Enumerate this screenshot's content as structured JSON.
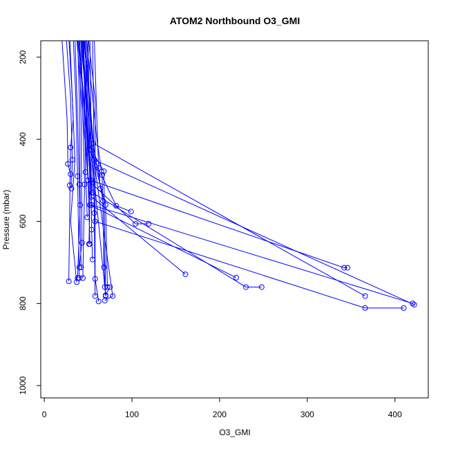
{
  "chart_data": {
    "type": "line",
    "title": "ATOM2 Northbound O3_GMI",
    "xlabel": "O3_GMI",
    "ylabel": "Pressure (mbar)",
    "xlim": [
      -4,
      438
    ],
    "ylim": [
      1030,
      160
    ],
    "y_reversed": true,
    "x_ticks": [
      0,
      100,
      200,
      300,
      400
    ],
    "y_ticks": [
      200,
      400,
      600,
      800,
      1000
    ],
    "grid": false,
    "legend": "none",
    "color": "#0000ff",
    "series": [
      {
        "x": [
          28,
          32,
          35,
          30,
          37
        ],
        "y": [
          150,
          300,
          450,
          600,
          748
        ],
        "markers": [
          0,
          0,
          0,
          0,
          1
        ]
      },
      {
        "x": [
          29,
          33,
          30,
          28
        ],
        "y": [
          150,
          350,
          420,
          746
        ],
        "markers": [
          0,
          0,
          1,
          1
        ]
      },
      {
        "x": [
          20,
          26,
          27,
          30,
          29
        ],
        "y": [
          150,
          350,
          460,
          485,
          512
        ],
        "markers": [
          0,
          0,
          1,
          1,
          1
        ]
      },
      {
        "x": [
          25,
          30,
          32,
          31
        ],
        "y": [
          150,
          300,
          450,
          520
        ],
        "markers": [
          0,
          0,
          1,
          1
        ]
      },
      {
        "x": [
          33,
          36,
          38,
          40
        ],
        "y": [
          150,
          300,
          490,
          738
        ],
        "markers": [
          0,
          0,
          1,
          1
        ]
      },
      {
        "x": [
          35,
          38,
          40,
          42
        ],
        "y": [
          150,
          350,
          510,
          712
        ],
        "markers": [
          0,
          0,
          1,
          1
        ]
      },
      {
        "x": [
          38,
          40,
          41,
          38
        ],
        "y": [
          150,
          300,
          560,
          738
        ],
        "markers": [
          0,
          0,
          1,
          1
        ]
      },
      {
        "x": [
          40,
          42,
          43,
          40
        ],
        "y": [
          150,
          350,
          652,
          712
        ],
        "markers": [
          0,
          0,
          1,
          1
        ]
      },
      {
        "x": [
          42,
          44,
          46,
          44
        ],
        "y": [
          150,
          350,
          510,
          738
        ],
        "markers": [
          0,
          0,
          1,
          1
        ]
      },
      {
        "x": [
          45,
          46,
          47,
          49
        ],
        "y": [
          150,
          300,
          480,
          590
        ],
        "markers": [
          0,
          0,
          1,
          1
        ]
      },
      {
        "x": [
          47,
          48,
          50,
          52
        ],
        "y": [
          150,
          350,
          500,
          655
        ],
        "markers": [
          0,
          0,
          1,
          1
        ]
      },
      {
        "x": [
          50,
          51,
          52,
          51
        ],
        "y": [
          150,
          300,
          560,
          655
        ],
        "markers": [
          0,
          0,
          1,
          1
        ]
      },
      {
        "x": [
          52,
          53,
          54,
          55
        ],
        "y": [
          150,
          300,
          620,
          693
        ],
        "markers": [
          0,
          0,
          1,
          1
        ]
      },
      {
        "x": [
          55,
          56,
          57,
          58
        ],
        "y": [
          150,
          300,
          580,
          782
        ],
        "markers": [
          0,
          0,
          1,
          1
        ]
      },
      {
        "x": [
          57,
          60,
          62,
          64
        ],
        "y": [
          150,
          350,
          470,
          520
        ],
        "markers": [
          0,
          0,
          1,
          1
        ]
      },
      {
        "x": [
          50,
          58,
          58,
          62
        ],
        "y": [
          150,
          300,
          740,
          795
        ],
        "markers": [
          0,
          0,
          1,
          1
        ]
      },
      {
        "x": [
          48,
          60,
          66,
          69
        ],
        "y": [
          150,
          400,
          487,
          760
        ],
        "markers": [
          0,
          0,
          1,
          1
        ]
      },
      {
        "x": [
          45,
          55,
          67,
          68
        ],
        "y": [
          150,
          400,
          550,
          712
        ],
        "markers": [
          0,
          0,
          1,
          1
        ]
      },
      {
        "x": [
          46,
          52,
          68,
          70
        ],
        "y": [
          150,
          420,
          478,
          782
        ],
        "markers": [
          0,
          0,
          1,
          1
        ]
      },
      {
        "x": [
          44,
          50,
          70,
          72
        ],
        "y": [
          150,
          400,
          560,
          760
        ],
        "markers": [
          0,
          0,
          1,
          1
        ]
      },
      {
        "x": [
          43,
          52,
          70,
          75
        ],
        "y": [
          150,
          390,
          780,
          760
        ],
        "markers": [
          0,
          0,
          1,
          1
        ]
      },
      {
        "x": [
          41,
          52,
          78,
          69
        ],
        "y": [
          150,
          380,
          782,
          793
        ],
        "markers": [
          0,
          0,
          1,
          1
        ]
      },
      {
        "x": [
          39,
          50,
          82,
          99
        ],
        "y": [
          150,
          420,
          562,
          576
        ],
        "markers": [
          0,
          0,
          1,
          1
        ]
      },
      {
        "x": [
          37,
          50,
          104,
          119
        ],
        "y": [
          150,
          500,
          606,
          606
        ],
        "markers": [
          0,
          0,
          1,
          1
        ]
      },
      {
        "x": [
          44,
          54,
          161
        ],
        "y": [
          150,
          540,
          729
        ],
        "markers": [
          0,
          1,
          1
        ]
      },
      {
        "x": [
          40,
          52,
          219
        ],
        "y": [
          150,
          560,
          737
        ],
        "markers": [
          0,
          1,
          1
        ]
      },
      {
        "x": [
          42,
          55,
          230,
          248
        ],
        "y": [
          150,
          530,
          760,
          760
        ],
        "markers": [
          0,
          1,
          1,
          1
        ]
      },
      {
        "x": [
          38,
          53,
          342,
          346
        ],
        "y": [
          150,
          500,
          713,
          713
        ],
        "markers": [
          0,
          1,
          1,
          1
        ]
      },
      {
        "x": [
          46,
          56,
          366
        ],
        "y": [
          150,
          410,
          782
        ],
        "markers": [
          0,
          1,
          1
        ]
      },
      {
        "x": [
          48,
          58,
          366,
          410
        ],
        "y": [
          150,
          600,
          811,
          811
        ],
        "markers": [
          0,
          1,
          1,
          1
        ]
      },
      {
        "x": [
          45,
          57,
          422
        ],
        "y": [
          150,
          450,
          803
        ],
        "markers": [
          0,
          1,
          1
        ]
      },
      {
        "x": [
          43,
          54,
          420
        ],
        "y": [
          150,
          560,
          800
        ],
        "markers": [
          0,
          1,
          1
        ]
      }
    ]
  }
}
